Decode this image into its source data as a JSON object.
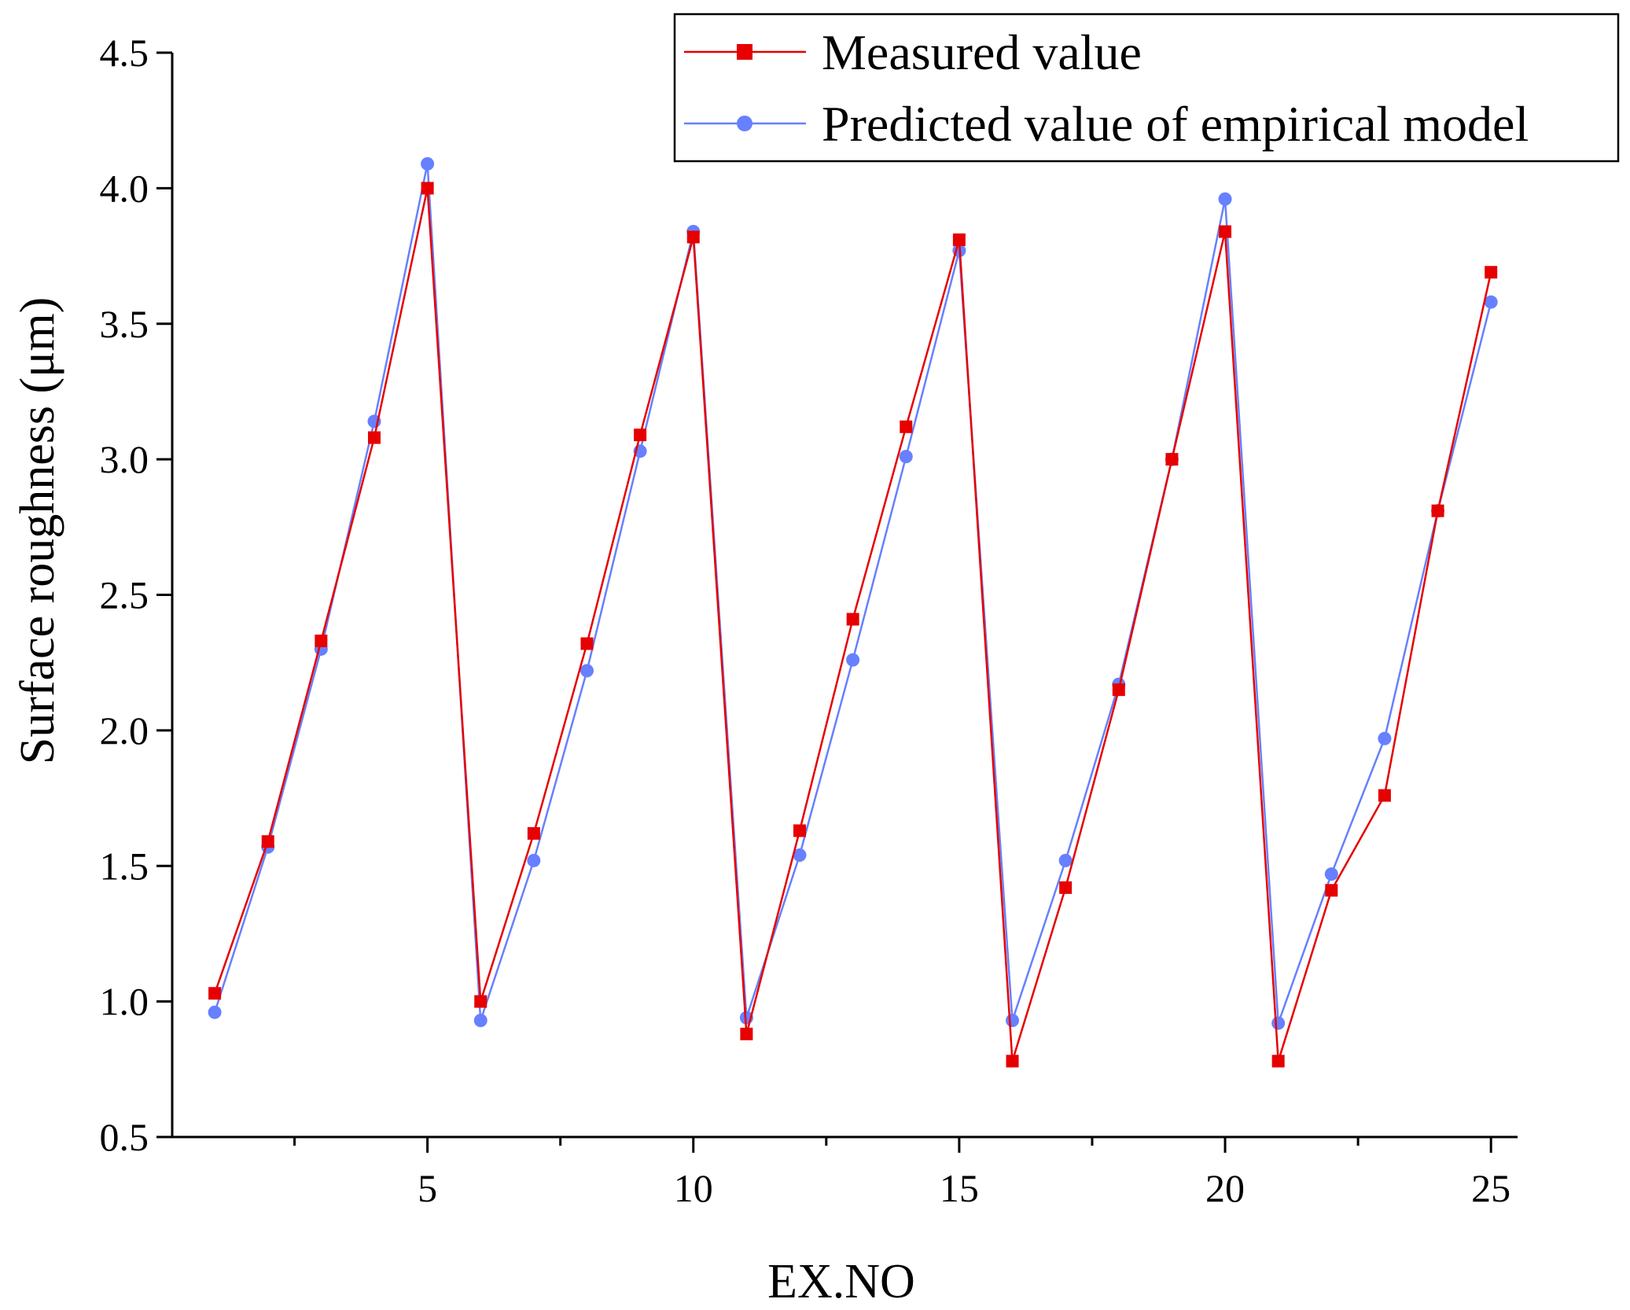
{
  "chart_data": {
    "type": "line",
    "title": "",
    "xlabel": "EX.NO",
    "ylabel": "Surface roughness (μm)",
    "xlim": [
      0.2,
      25.5
    ],
    "ylim": [
      0.5,
      4.5
    ],
    "x_ticks": [
      5,
      10,
      15,
      20,
      25
    ],
    "x_tick_labels": [
      "5",
      "10",
      "15",
      "20",
      "25"
    ],
    "x_minor_ticks": [
      2.5,
      7.5,
      12.5,
      17.5,
      22.5
    ],
    "y_ticks": [
      0.5,
      1.0,
      1.5,
      2.0,
      2.5,
      3.0,
      3.5,
      4.0,
      4.5
    ],
    "y_tick_labels": [
      "0.5",
      "1.0",
      "1.5",
      "2.0",
      "2.5",
      "3.0",
      "3.5",
      "4.0",
      "4.5"
    ],
    "legend_position": "top-right",
    "grid": false,
    "x": [
      1,
      2,
      3,
      4,
      5,
      6,
      7,
      8,
      9,
      10,
      11,
      12,
      13,
      14,
      15,
      16,
      17,
      18,
      19,
      20,
      21,
      22,
      23,
      24,
      25
    ],
    "series": [
      {
        "name": "Measured value",
        "color": "#e60000",
        "marker": "square",
        "values": [
          1.03,
          1.59,
          2.33,
          3.08,
          4.0,
          1.0,
          1.62,
          2.32,
          3.09,
          3.82,
          0.88,
          1.63,
          2.41,
          3.12,
          3.81,
          0.78,
          1.42,
          2.15,
          3.0,
          3.84,
          0.78,
          1.41,
          1.76,
          2.81,
          3.69
        ]
      },
      {
        "name": "Predicted value of empirical model",
        "color": "#6680ff",
        "marker": "circle",
        "values": [
          0.96,
          1.57,
          2.3,
          3.14,
          4.09,
          0.93,
          1.52,
          2.22,
          3.03,
          3.84,
          0.94,
          1.54,
          2.26,
          3.01,
          3.77,
          0.93,
          1.52,
          2.17,
          3.0,
          3.96,
          0.92,
          1.47,
          1.97,
          2.81,
          3.58
        ]
      }
    ]
  }
}
